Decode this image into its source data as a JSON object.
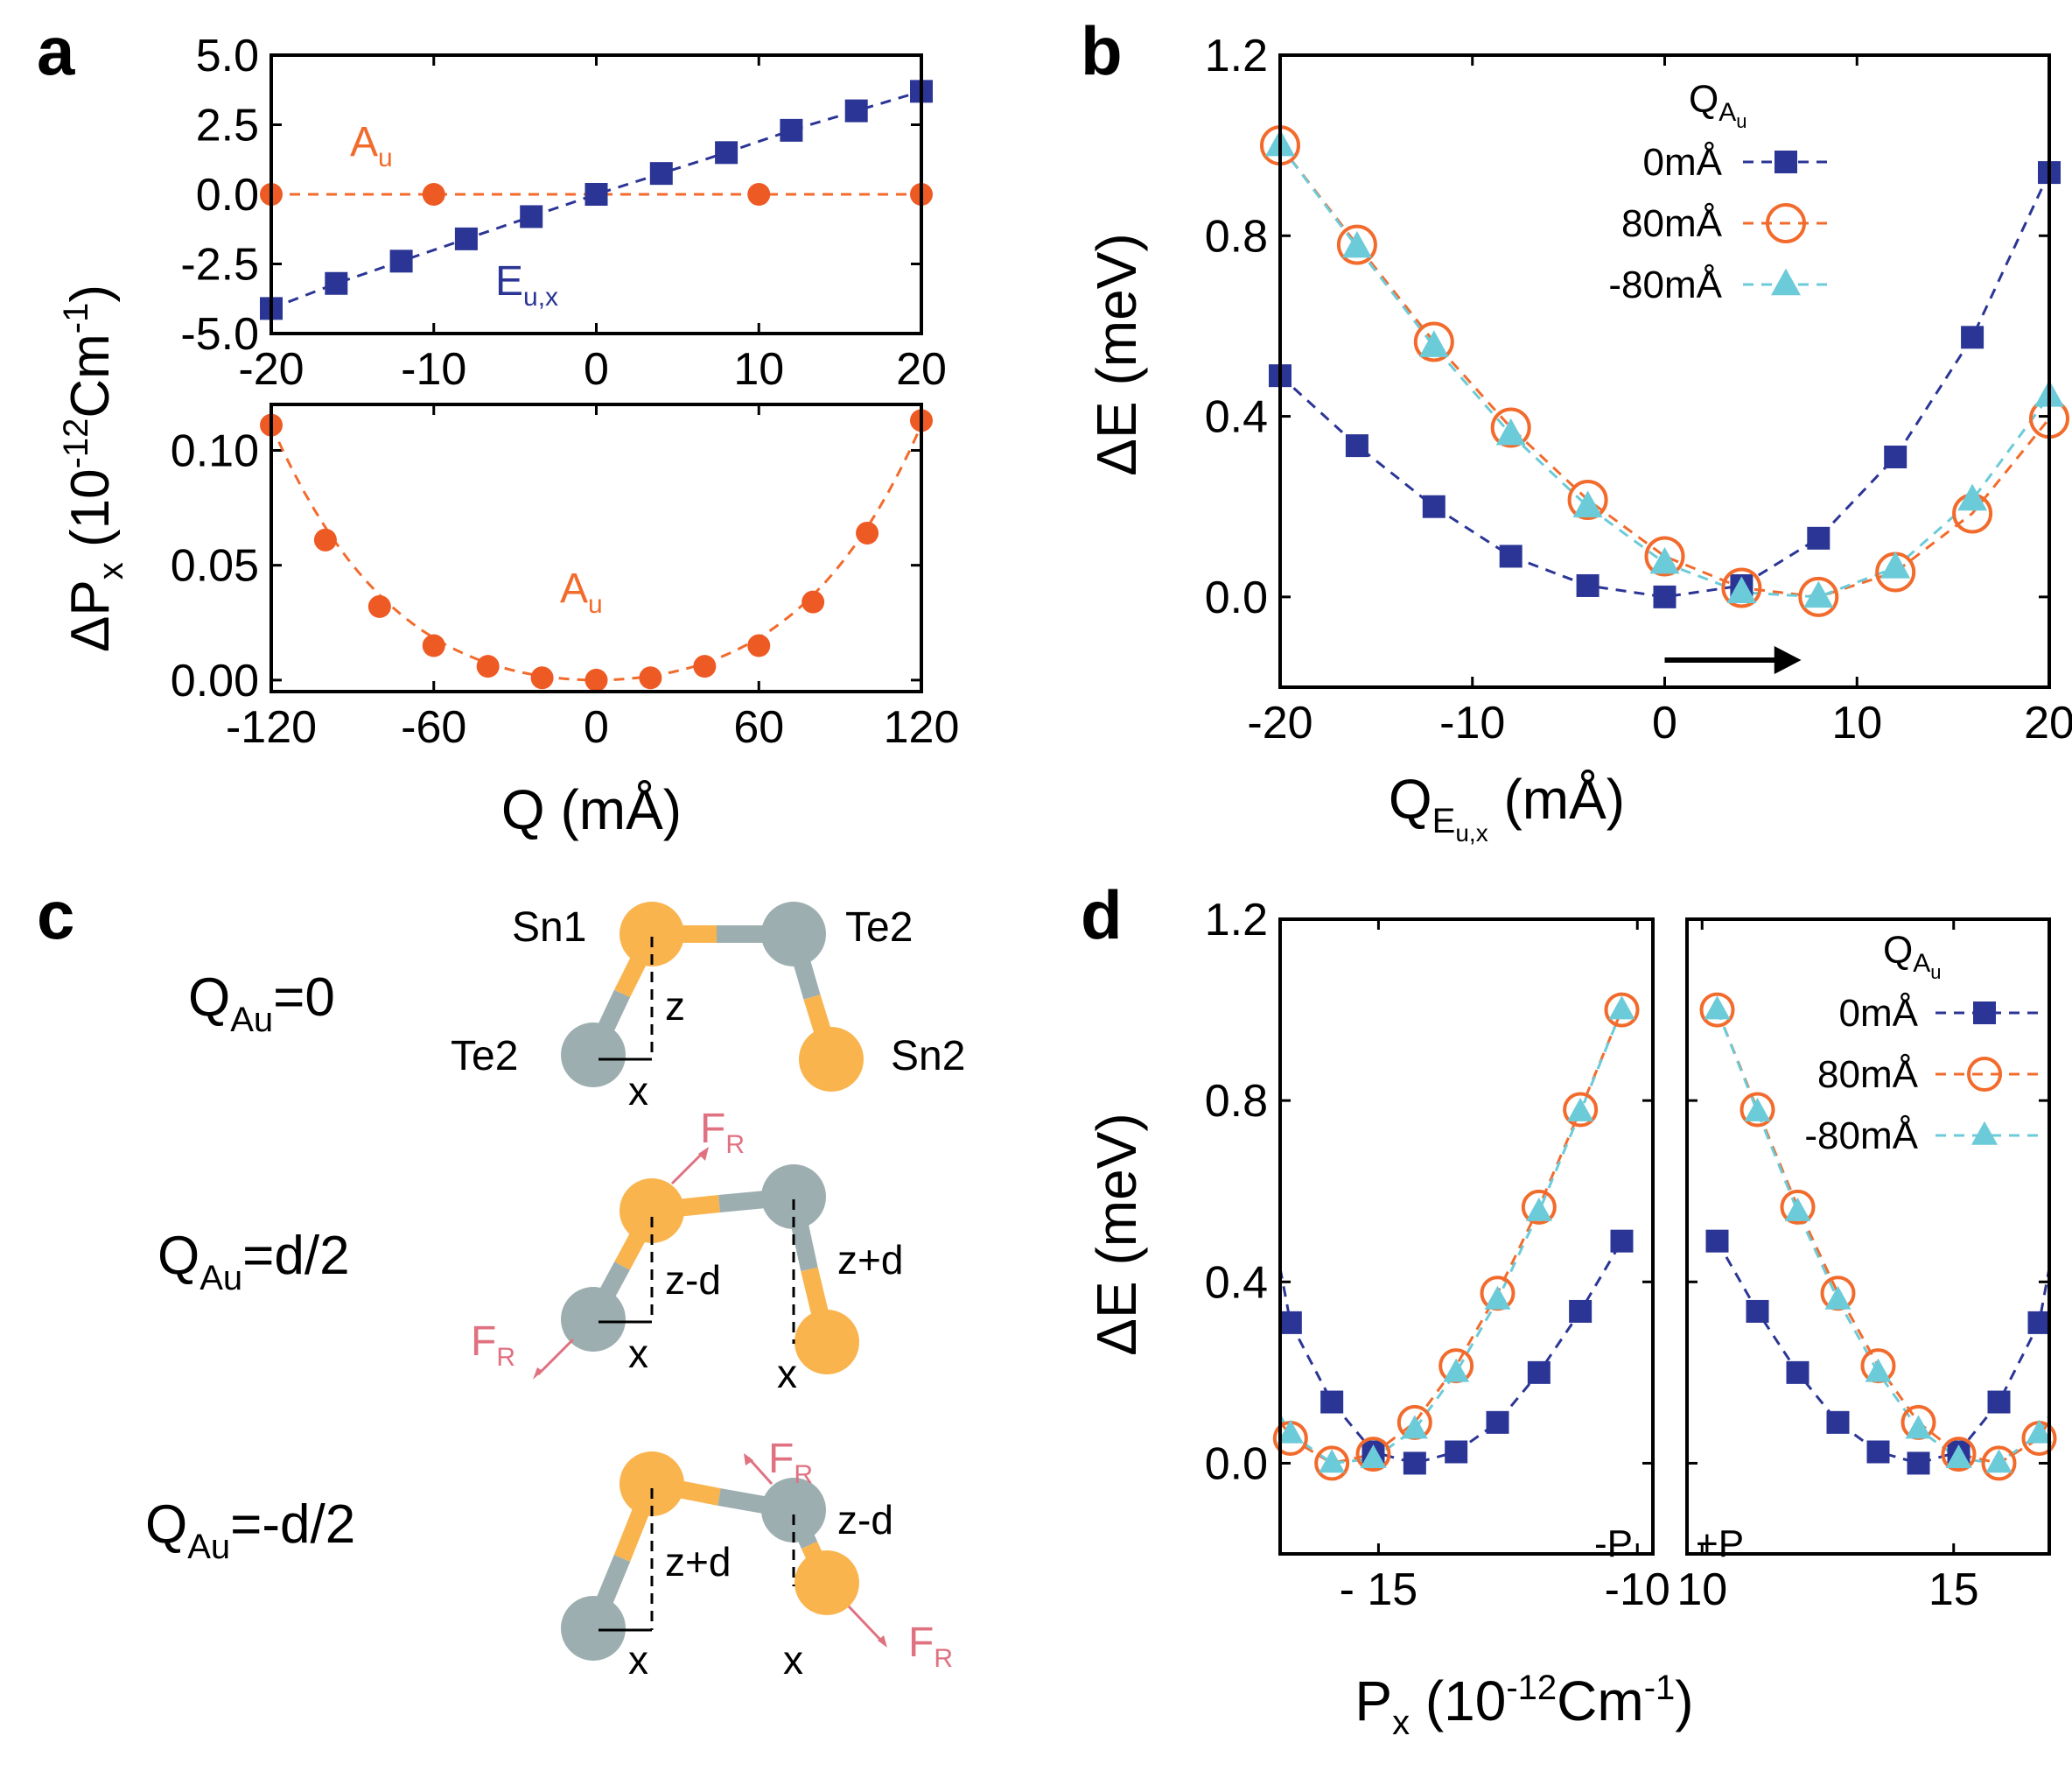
{
  "panel_labels": {
    "a": "a",
    "b": "b",
    "c": "c",
    "d": "d"
  },
  "colors": {
    "blue": "#2B3595",
    "orange": "#F26B2C",
    "orange_dot": "#EE5A24",
    "cyan": "#6CCBD8",
    "atom_sn": "#F9B44E",
    "atom_te": "#9DAEB0",
    "force": "#E07180",
    "black": "#000000"
  },
  "labels": {
    "a_ylabel": {
      "main": "ΔP",
      "sub": "x",
      "rest": " (10",
      "exp": "-12",
      "rest2": "Cm",
      "exp2": "-1",
      "close": ")"
    },
    "a_xlabel": "Q (mÅ)",
    "a_top_Au": {
      "main": "A",
      "sub": "u"
    },
    "a_top_Eu": {
      "main": "E",
      "sub": "u,x"
    },
    "a_bot_Au": {
      "main": "A",
      "sub": "u"
    },
    "b_ylabel": "ΔE (meV)",
    "b_xlabel": {
      "main": "Q",
      "sub": "E",
      "subsub": "u,x",
      "rest": " (mÅ)"
    },
    "d_ylabel": "ΔE (meV)",
    "d_xlabel": {
      "main": "P",
      "sub": "x",
      "rest": " (10",
      "exp": "-12",
      "rest2": "Cm",
      "exp2": "-1",
      "close": ")"
    },
    "legend_title": {
      "main": "Q",
      "sub": "A",
      "subsub": "u"
    },
    "legend_items": [
      "0mÅ",
      "80mÅ",
      "-80mÅ"
    ],
    "d_left_tag": "-P",
    "d_right_tag": "+P"
  },
  "chart_data": [
    {
      "panel": "a-top",
      "type": "scatter",
      "xlim": [
        -20,
        20
      ],
      "ylim": [
        -5.0,
        5.0
      ],
      "xticks": [
        "-20",
        "-10",
        "0",
        "10",
        "20"
      ],
      "yticks": [
        "5.0",
        "2.5",
        "0.0",
        "-2.5",
        "-5.0"
      ],
      "series": [
        {
          "name": "E_u,x",
          "x": [
            -20,
            -16,
            -12,
            -8,
            -4,
            0,
            4,
            8,
            12,
            16,
            20
          ],
          "y": [
            -4.1,
            -3.2,
            -2.4,
            -1.6,
            -0.8,
            0.0,
            0.75,
            1.5,
            2.3,
            3.0,
            3.7
          ]
        },
        {
          "name": "A_u",
          "x": [
            -20,
            -10,
            0,
            10,
            20
          ],
          "y": [
            0.0,
            0.0,
            0.0,
            0.0,
            0.0
          ]
        }
      ]
    },
    {
      "panel": "a-bottom",
      "type": "scatter",
      "xlim": [
        -120,
        120
      ],
      "ylim": [
        -0.005,
        0.12
      ],
      "xticks": [
        "-120",
        "-60",
        "0",
        "60",
        "120"
      ],
      "yticks": [
        "0.10",
        "0.05",
        "0.00"
      ],
      "series": [
        {
          "name": "A_u",
          "x": [
            -120,
            -100,
            -80,
            -60,
            -40,
            -20,
            0,
            20,
            40,
            60,
            80,
            100,
            120
          ],
          "y": [
            0.111,
            0.061,
            0.032,
            0.015,
            0.006,
            0.001,
            0.0,
            0.001,
            0.006,
            0.015,
            0.034,
            0.064,
            0.113
          ]
        }
      ]
    },
    {
      "panel": "b",
      "type": "scatter",
      "xlim": [
        -20,
        20
      ],
      "ylim": [
        -0.2,
        1.2
      ],
      "xticks": [
        "-20",
        "-10",
        "0",
        "10",
        "20"
      ],
      "yticks": [
        "1.2",
        "0.8",
        "0.4",
        "0.0"
      ],
      "series": [
        {
          "name": "0mÅ",
          "x": [
            -20,
            -16,
            -12,
            -8,
            -4,
            0,
            4,
            8,
            12,
            16,
            20
          ],
          "y": [
            0.49,
            0.335,
            0.2,
            0.09,
            0.025,
            0.0,
            0.025,
            0.13,
            0.31,
            0.575,
            0.94
          ]
        },
        {
          "name": "80mÅ",
          "x": [
            -20,
            -16,
            -12,
            -8,
            -4,
            0,
            4,
            8,
            12,
            16,
            20
          ],
          "y": [
            1.0,
            0.78,
            0.565,
            0.375,
            0.215,
            0.09,
            0.02,
            0.0,
            0.055,
            0.185,
            0.395
          ]
        },
        {
          "name": "-80mÅ",
          "x": [
            -20,
            -16,
            -12,
            -8,
            -4,
            0,
            4,
            8,
            12,
            16,
            20
          ],
          "y": [
            1.0,
            0.775,
            0.555,
            0.36,
            0.2,
            0.075,
            0.01,
            0.0,
            0.065,
            0.215,
            0.445
          ]
        }
      ],
      "annotation": "arrow from 0 to 7 at y=-0.14"
    },
    {
      "panel": "d-left",
      "type": "scatter",
      "xlim": [
        -16.9,
        -9.7
      ],
      "ylim": [
        -0.2,
        1.2
      ],
      "xticks": [
        "- 15",
        "-10"
      ],
      "yticks": [
        "1.2",
        "0.8",
        "0.4",
        "0.0"
      ],
      "series": [
        {
          "name": "0mÅ",
          "x": [
            -16.7,
            -15.9,
            -15.1,
            -14.3,
            -13.5,
            -12.7,
            -11.9,
            -11.1,
            -10.3
          ],
          "y": [
            0.31,
            0.135,
            0.025,
            0.0,
            0.025,
            0.09,
            0.2,
            0.335,
            0.49
          ]
        },
        {
          "name": "80mÅ",
          "x": [
            -16.7,
            -15.9,
            -15.1,
            -14.3,
            -13.5,
            -12.7,
            -11.9,
            -11.1,
            -10.3
          ],
          "y": [
            0.055,
            0.0,
            0.02,
            0.09,
            0.215,
            0.375,
            0.565,
            0.78,
            1.0
          ]
        },
        {
          "name": "-80mÅ",
          "x": [
            -16.7,
            -15.9,
            -15.1,
            -14.3,
            -13.5,
            -12.7,
            -11.9,
            -11.1,
            -10.3
          ],
          "y": [
            0.065,
            0.0,
            0.01,
            0.075,
            0.2,
            0.36,
            0.555,
            0.775,
            1.0
          ]
        }
      ]
    },
    {
      "panel": "d-right",
      "type": "scatter",
      "xlim": [
        9.7,
        16.9
      ],
      "ylim": [
        -0.2,
        1.2
      ],
      "xticks": [
        "10",
        "15"
      ],
      "series": [
        {
          "name": "0mÅ",
          "x": [
            10.3,
            11.1,
            11.9,
            12.7,
            13.5,
            14.3,
            15.1,
            15.9,
            16.7
          ],
          "y": [
            0.49,
            0.335,
            0.2,
            0.09,
            0.025,
            0.0,
            0.025,
            0.135,
            0.31
          ]
        },
        {
          "name": "80mÅ",
          "x": [
            10.3,
            11.1,
            11.9,
            12.7,
            13.5,
            14.3,
            15.1,
            15.9,
            16.7
          ],
          "y": [
            1.0,
            0.78,
            0.565,
            0.375,
            0.215,
            0.09,
            0.02,
            0.0,
            0.055
          ]
        },
        {
          "name": "-80mÅ",
          "x": [
            10.3,
            11.1,
            11.9,
            12.7,
            13.5,
            14.3,
            15.1,
            15.9,
            16.7
          ],
          "y": [
            1.0,
            0.775,
            0.555,
            0.36,
            0.2,
            0.075,
            0.01,
            0.0,
            0.065
          ]
        }
      ]
    }
  ],
  "panel_c": {
    "rows": [
      {
        "label": {
          "main": "Q",
          "sub": "Au",
          "rest": "=0"
        }
      },
      {
        "label": {
          "main": "Q",
          "sub": "Au",
          "rest": "=d/2"
        }
      },
      {
        "label": {
          "main": "Q",
          "sub": "Au",
          "rest": "=-d/2"
        }
      }
    ],
    "atom_labels": {
      "sn1": "Sn1",
      "te2_top": "Te2",
      "te2_left": "Te2",
      "sn2": "Sn2"
    },
    "dims": {
      "z": "z",
      "x": "x",
      "z_minus_d": "z-d",
      "z_plus_d": "z+d"
    },
    "force": {
      "main": "F",
      "sub": "R"
    }
  }
}
